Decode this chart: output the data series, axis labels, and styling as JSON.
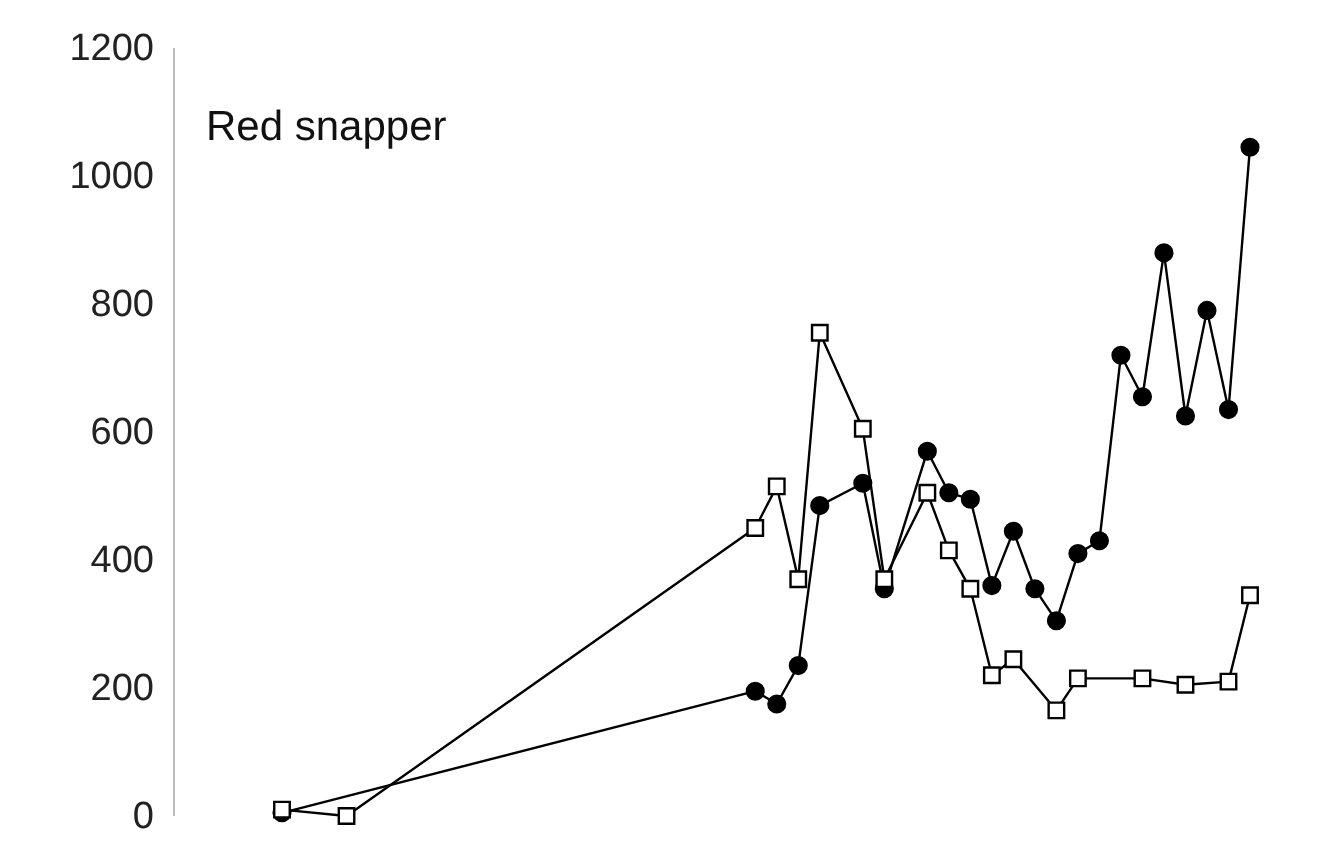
{
  "chart_data": {
    "type": "line",
    "title": "Red snapper",
    "categories": [
      null,
      null,
      null,
      null,
      null,
      null,
      null,
      null,
      null,
      null,
      null,
      null,
      null,
      null,
      null,
      null,
      null,
      null,
      null,
      null,
      null,
      null,
      null,
      null,
      null,
      null,
      null,
      null,
      null,
      null,
      null,
      null,
      null,
      null,
      null,
      null,
      null,
      null,
      null,
      null,
      null,
      null,
      null,
      null,
      null,
      null
    ],
    "ylim": [
      0,
      1200
    ],
    "yticks": [
      0,
      200,
      400,
      600,
      800,
      1000,
      1200
    ],
    "grid": false,
    "series": [
      {
        "color": "#000000",
        "marker": "circle",
        "values": [
          5,
          null,
          null,
          null,
          null,
          null,
          null,
          null,
          null,
          null,
          null,
          null,
          null,
          null,
          null,
          null,
          null,
          null,
          null,
          null,
          null,
          null,
          195,
          175,
          235,
          485,
          null,
          520,
          355,
          null,
          570,
          505,
          495,
          360,
          445,
          355,
          305,
          410,
          430,
          720,
          655,
          880,
          625,
          790,
          635,
          1045
        ]
      },
      {
        "color": "#000000",
        "marker": "square",
        "values": [
          10,
          null,
          null,
          0,
          null,
          null,
          null,
          null,
          null,
          null,
          null,
          null,
          null,
          null,
          null,
          null,
          null,
          null,
          null,
          null,
          null,
          null,
          450,
          515,
          370,
          755,
          null,
          605,
          370,
          null,
          505,
          415,
          355,
          220,
          245,
          null,
          165,
          215,
          null,
          null,
          215,
          null,
          205,
          null,
          210,
          345
        ]
      }
    ]
  }
}
